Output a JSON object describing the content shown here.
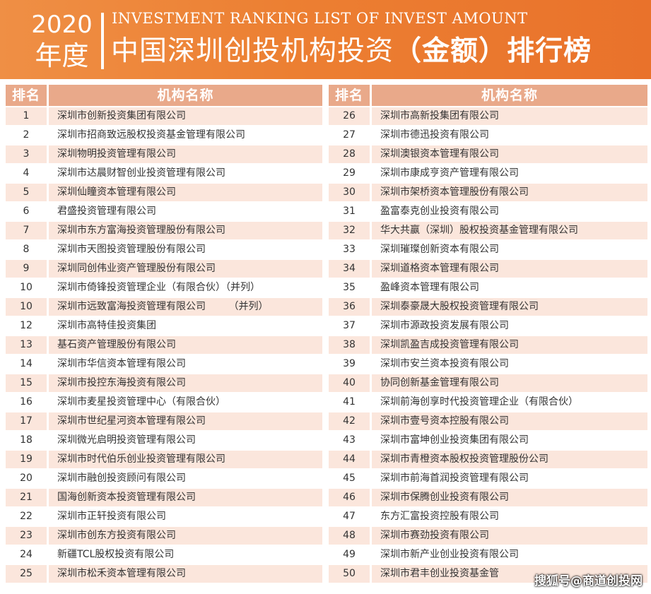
{
  "banner": {
    "year": "2020",
    "year_suffix": "年度",
    "english_title": "INVESTMENT RANKING LIST OF INVEST AMOUNT",
    "title_main": "中国深圳创投机构投资",
    "title_paren_open": "（",
    "title_bold": "金额",
    "title_paren_close": "）",
    "title_end": "排行榜"
  },
  "table": {
    "header_rank": "排名",
    "header_name": "机构名称",
    "left_rows": [
      {
        "rank": "1",
        "name": "深圳市创新投资集团有限公司"
      },
      {
        "rank": "2",
        "name": "深圳市招商致远股权投资基金管理有限公司"
      },
      {
        "rank": "3",
        "name": "深圳物明投资管理有限公司"
      },
      {
        "rank": "4",
        "name": "深圳市达晨财智创业投资管理有限公司"
      },
      {
        "rank": "5",
        "name": "深圳仙瞳资本管理有限公司"
      },
      {
        "rank": "6",
        "name": "君盛投资管理有限公司"
      },
      {
        "rank": "7",
        "name": "深圳市东方富海投资管理股份有限公司"
      },
      {
        "rank": "8",
        "name": "深圳市天图投资管理股份有限公司"
      },
      {
        "rank": "9",
        "name": "深圳同创伟业资产管理股份有限公司"
      },
      {
        "rank": "10",
        "name": "深圳市倚锋投资管理企业（有限合伙）（并列）"
      },
      {
        "rank": "10",
        "name": "深圳市远致富海投资管理有限公司　　 （并列）"
      },
      {
        "rank": "12",
        "name": "深圳市高特佳投资集团"
      },
      {
        "rank": "13",
        "name": "基石资产管理股份有限公司"
      },
      {
        "rank": "14",
        "name": "深圳市华信资本管理有限公司"
      },
      {
        "rank": "15",
        "name": "深圳市投控东海投资有限公司"
      },
      {
        "rank": "16",
        "name": "深圳市麦星投资管理中心（有限合伙）"
      },
      {
        "rank": "17",
        "name": "深圳市世纪星河资本管理有限公司"
      },
      {
        "rank": "18",
        "name": "深圳微光启明投资管理有限公司"
      },
      {
        "rank": "19",
        "name": "深圳市时代伯乐创业投资管理有限公司"
      },
      {
        "rank": "20",
        "name": "深圳市融创投资顾问有限公司"
      },
      {
        "rank": "21",
        "name": "国海创新资本投资管理有限公司"
      },
      {
        "rank": "22",
        "name": "深圳市正轩投资有限公司"
      },
      {
        "rank": "23",
        "name": "深圳市创东方投资有限公司"
      },
      {
        "rank": "24",
        "name": "新疆TCL股权投资有限公司"
      },
      {
        "rank": "25",
        "name": "深圳市松禾资本管理有限公司"
      }
    ],
    "right_rows": [
      {
        "rank": "26",
        "name": "深圳市高新投集团有限公司"
      },
      {
        "rank": "27",
        "name": "深圳市德迅投资有限公司"
      },
      {
        "rank": "28",
        "name": "深圳澳银资本管理有限公司"
      },
      {
        "rank": "29",
        "name": "深圳市康成亨资产管理有限公司"
      },
      {
        "rank": "30",
        "name": "深圳市架桥资本管理股份有限公司"
      },
      {
        "rank": "31",
        "name": "盈富泰克创业投资有限公司"
      },
      {
        "rank": "32",
        "name": "华大共赢（深圳）股权投资基金管理有限公司"
      },
      {
        "rank": "33",
        "name": "深圳璀璨创新资本有限公司"
      },
      {
        "rank": "34",
        "name": "深圳道格资本管理有限公司"
      },
      {
        "rank": "35",
        "name": "盈峰资本管理有限公司"
      },
      {
        "rank": "36",
        "name": "深圳泰豪晟大股权投资管理有限公司"
      },
      {
        "rank": "37",
        "name": "深圳市源政投资发展有限公司"
      },
      {
        "rank": "38",
        "name": "深圳凯盈吉成投资管理有限公司"
      },
      {
        "rank": "39",
        "name": "深圳市安兰资本投资有限公司"
      },
      {
        "rank": "40",
        "name": "协同创新基金管理有限公司"
      },
      {
        "rank": "41",
        "name": "深圳前海创享时代投资管理企业（有限合伙）"
      },
      {
        "rank": "42",
        "name": "深圳市壹号资本控股有限公司"
      },
      {
        "rank": "43",
        "name": "深圳市富坤创业投资集团有限公司"
      },
      {
        "rank": "44",
        "name": "深圳市青橙资本股权投资管理股份公司"
      },
      {
        "rank": "45",
        "name": "深圳市前海首润投资管理有限公司"
      },
      {
        "rank": "46",
        "name": "深圳市保腾创业投资有限公司"
      },
      {
        "rank": "47",
        "name": "东方汇富投资控股有限公司"
      },
      {
        "rank": "48",
        "name": "深圳市赛劲投资有限公司"
      },
      {
        "rank": "49",
        "name": "深圳市新产业创业投资有限公司"
      },
      {
        "rank": "50",
        "name": "深圳市君丰创业投资基金管"
      }
    ]
  },
  "watermark": "搜狐号@商道创投网"
}
